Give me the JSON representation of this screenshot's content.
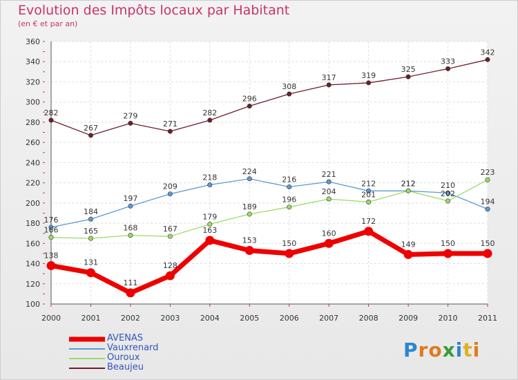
{
  "header": {
    "title": "Evolution des Impôts locaux par Habitant",
    "subtitle": "(en € et par an)"
  },
  "logo": {
    "letters": [
      "P",
      "r",
      "o",
      "x",
      "i",
      "t",
      "i"
    ],
    "colors": [
      "#2a86d0",
      "#e07a20",
      "#e07a20",
      "#3b9a3b",
      "#2a86d0",
      "#e0b020",
      "#e07a20"
    ]
  },
  "chart_data": {
    "type": "line",
    "x": [
      "2000",
      "2001",
      "2002",
      "2003",
      "2004",
      "2005",
      "2006",
      "2007",
      "2008",
      "2009",
      "2010",
      "2011"
    ],
    "ylim": [
      100,
      360
    ],
    "yticks": [
      100,
      120,
      140,
      160,
      180,
      200,
      220,
      240,
      260,
      280,
      300,
      320,
      340,
      360
    ],
    "title": "Evolution des Impôts locaux par Habitant",
    "subtitle": "(en € et par an)",
    "grid": true,
    "legend": "bottom-left",
    "series": [
      {
        "name": "Beaujeu",
        "color": "#6e1e2a",
        "values": [
          282,
          267,
          279,
          271,
          282,
          296,
          308,
          317,
          319,
          325,
          333,
          342
        ]
      },
      {
        "name": "Vauxrenard",
        "color": "#5b9bd5",
        "values": [
          176,
          184,
          197,
          209,
          218,
          224,
          216,
          221,
          212,
          212,
          210,
          194
        ]
      },
      {
        "name": "Ouroux",
        "color": "#99dd66",
        "values": [
          166,
          165,
          168,
          167,
          179,
          189,
          196,
          204,
          201,
          212,
          202,
          223
        ]
      },
      {
        "name": "AVENAS",
        "color": "#ee0000",
        "values": [
          138,
          131,
          111,
          128,
          163,
          153,
          150,
          160,
          172,
          149,
          150,
          150
        ]
      }
    ],
    "legend_order": [
      "AVENAS",
      "Vauxrenard",
      "Ouroux",
      "Beaujeu"
    ]
  }
}
